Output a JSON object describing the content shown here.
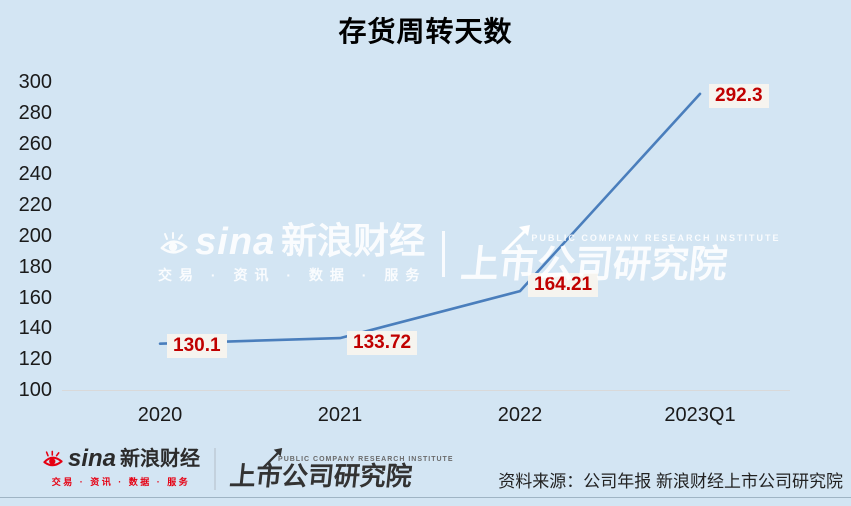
{
  "title": "存货周转天数",
  "chart_data": {
    "type": "line",
    "categories": [
      "2020",
      "2021",
      "2022",
      "2023Q1"
    ],
    "series": [
      {
        "name": "存货周转天数",
        "values": [
          130.1,
          133.72,
          164.21,
          292.3
        ]
      }
    ],
    "point_labels": [
      "130.1",
      "133.72",
      "164.21",
      "292.3"
    ],
    "ylim": [
      100,
      300
    ],
    "yticks": [
      100,
      120,
      140,
      160,
      180,
      200,
      220,
      240,
      260,
      280,
      300
    ],
    "grid": false,
    "legend": "none",
    "line_color": "#4a7ebc",
    "point_label_color": "#c00000",
    "point_label_bg": "#f6f4ef",
    "baseline_color": "#d9d9d9"
  },
  "watermark": {
    "sina_logo": "sina",
    "brand": "新浪财经",
    "tagline": "交易 · 资讯 · 数据 · 服务",
    "institute_en": "PUBLIC COMPANY RESEARCH INSTITUTE",
    "institute": "上市公司研究院"
  },
  "footer": {
    "sina_logo": "sina",
    "brand": "新浪财经",
    "tagline": "交易 · 资讯 · 数据 · 服务",
    "institute_en": "PUBLIC COMPANY RESEARCH INSTITUTE",
    "institute": "上市公司研究院",
    "source": "资料来源：公司年报 新浪财经上市公司研究院"
  },
  "colors": {
    "background": "#d3e5f3",
    "line": "#4a7ebc",
    "value_red": "#c00000",
    "sina_red": "#e60012"
  }
}
